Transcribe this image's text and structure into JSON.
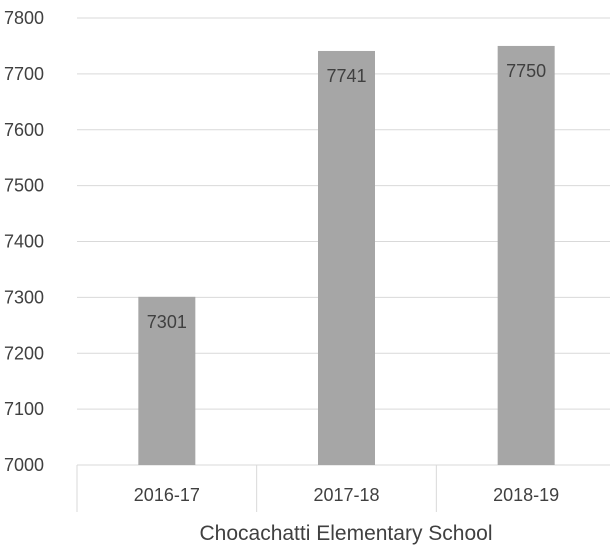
{
  "chart_data": {
    "type": "bar",
    "title": "",
    "ylabel": "",
    "xlabel": "Chocachatti Elementary School",
    "categories": [
      "2016-17",
      "2017-18",
      "2018-19"
    ],
    "values": [
      7301,
      7741,
      7750
    ],
    "data_labels": [
      "7301",
      "7741",
      "7750"
    ],
    "ylim": [
      7000,
      7800
    ],
    "yticks": [
      7000,
      7100,
      7200,
      7300,
      7400,
      7500,
      7600,
      7700,
      7800
    ],
    "ytick_labels": [
      "7000",
      "7100",
      "7200",
      "7300",
      "7400",
      "7500",
      "7600",
      "7700",
      "7800"
    ],
    "grid": true,
    "legend": "none",
    "colors": {
      "bar": "#a6a6a6",
      "grid": "#d9d9d9",
      "text": "#404040"
    }
  }
}
